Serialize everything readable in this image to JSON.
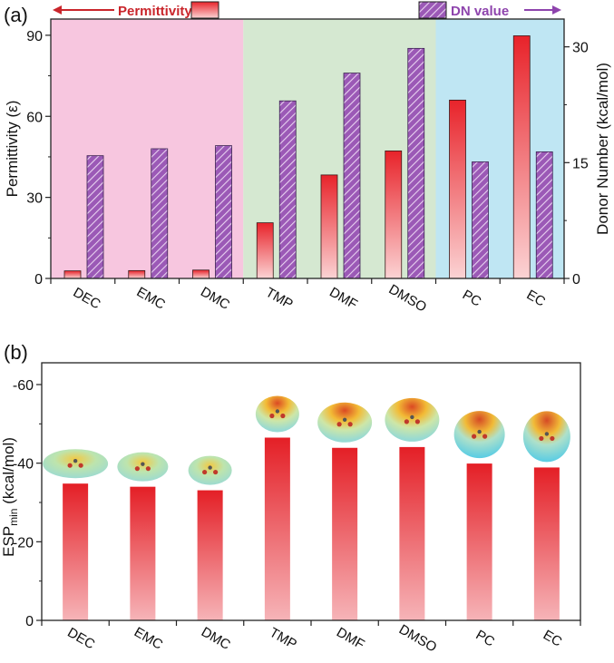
{
  "chart_data": [
    {
      "panel_label": "(a)",
      "type": "bar",
      "categories": [
        "DEC",
        "EMC",
        "DMC",
        "TMP",
        "DMF",
        "DMSO",
        "PC",
        "EC"
      ],
      "region_colors": [
        "#f7c6df",
        "#d5e8d1",
        "#bfe6f3"
      ],
      "regions": [
        {
          "from": 0,
          "to": 2
        },
        {
          "from": 3,
          "to": 5
        },
        {
          "from": 6,
          "to": 7
        }
      ],
      "legend": {
        "permittivity": "Permittivity",
        "dn": "DN value"
      },
      "series": [
        {
          "name": "Permittivity",
          "axis": "left",
          "color": "#e8232a",
          "values": [
            2.8,
            2.9,
            3.1,
            20.6,
            38.3,
            47.2,
            66.0,
            89.8
          ]
        },
        {
          "name": "DN value",
          "axis": "right",
          "color": "#9b59b6",
          "values": [
            15.9,
            16.8,
            17.2,
            23.0,
            26.6,
            29.8,
            15.1,
            16.4
          ]
        }
      ],
      "ylabel": "Permittivity (ε)",
      "ylim": [
        0,
        96
      ],
      "yticks": [
        0,
        30,
        60,
        90
      ],
      "y2label": "Donor Number (kcal/mol)",
      "y2lim": [
        0,
        33.6
      ],
      "y2ticks": [
        0,
        15,
        30
      ]
    },
    {
      "panel_label": "(b)",
      "type": "bar",
      "categories": [
        "DEC",
        "EMC",
        "DMC",
        "TMP",
        "DMF",
        "DMSO",
        "PC",
        "EC"
      ],
      "series": [
        {
          "name": "ESPmin",
          "color": "#e8232a",
          "values": [
            -34.8,
            -34.0,
            -33.1,
            -46.5,
            -43.9,
            -44.1,
            -39.9,
            -38.9
          ]
        }
      ],
      "ylabel_main": "ESP",
      "ylabel_sub": "min",
      "ylabel_unit": " (kcal/mol)",
      "ylim": [
        0,
        -62
      ],
      "yticks": [
        0,
        -20,
        -40,
        -60
      ],
      "tick_labels": [
        "0",
        "-20",
        "-40",
        "-60"
      ]
    }
  ]
}
